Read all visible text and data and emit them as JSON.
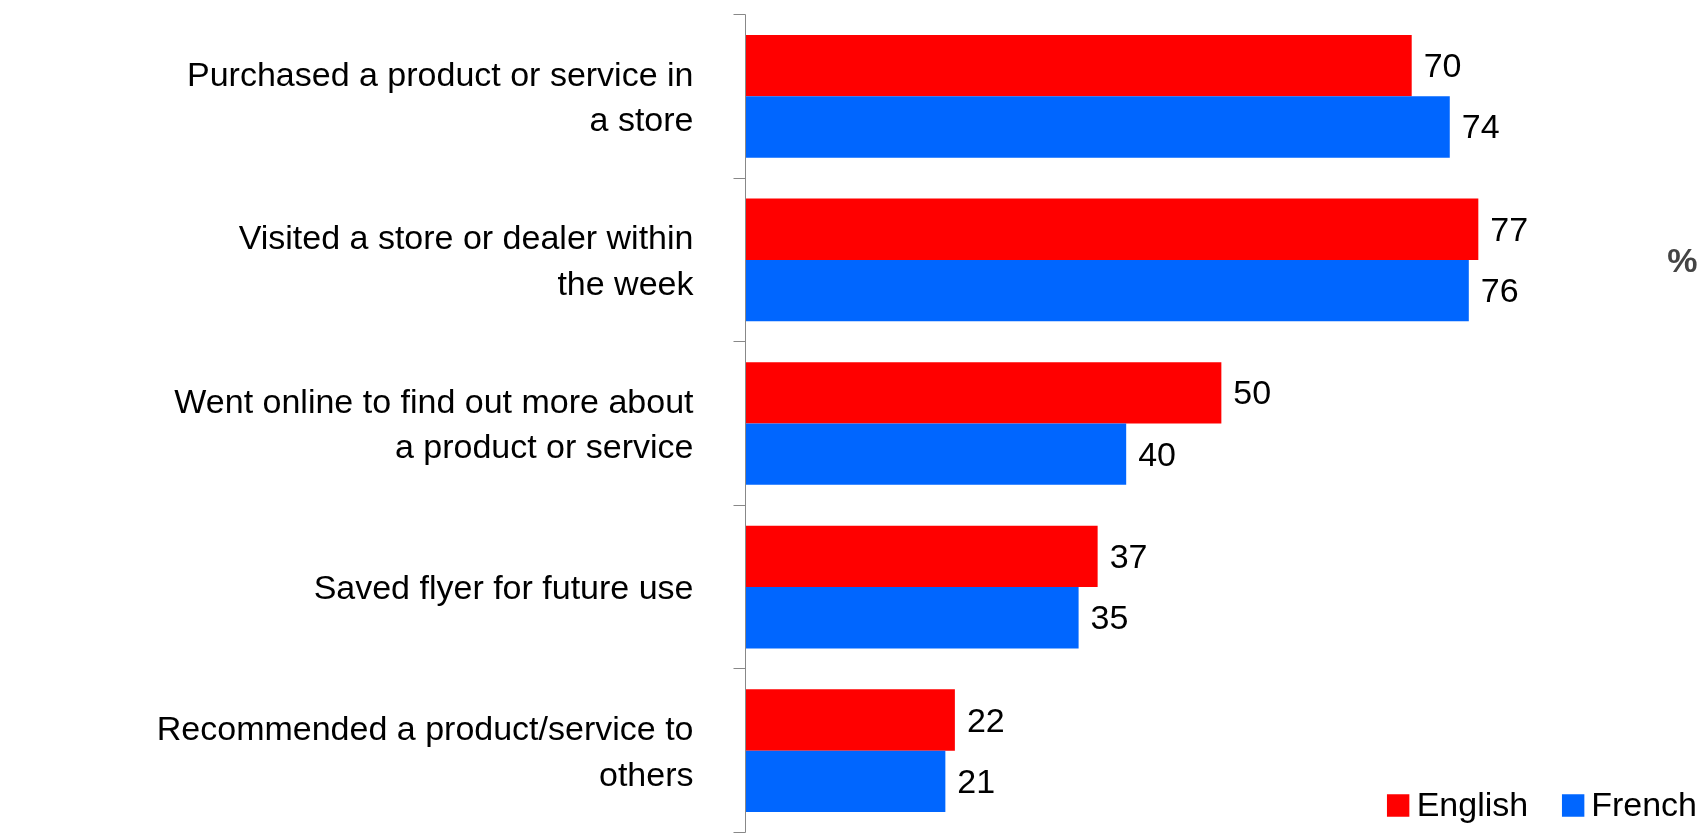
{
  "chart_data": {
    "type": "bar",
    "orientation": "horizontal",
    "categories": [
      "Purchased a product or service in a store",
      "Visited a store or dealer within the week",
      "Went online to find out more about a product or service",
      "Saved flyer for future use",
      "Recommended a product/service to others"
    ],
    "series": [
      {
        "name": "English",
        "color": "#ff0000",
        "values": [
          70,
          77,
          50,
          37,
          22
        ]
      },
      {
        "name": "French",
        "color": "#0066ff",
        "values": [
          74,
          76,
          40,
          35,
          21
        ]
      }
    ],
    "data_labels": true,
    "grid": false,
    "legend": "bottom right",
    "annotations": [
      "%"
    ]
  }
}
